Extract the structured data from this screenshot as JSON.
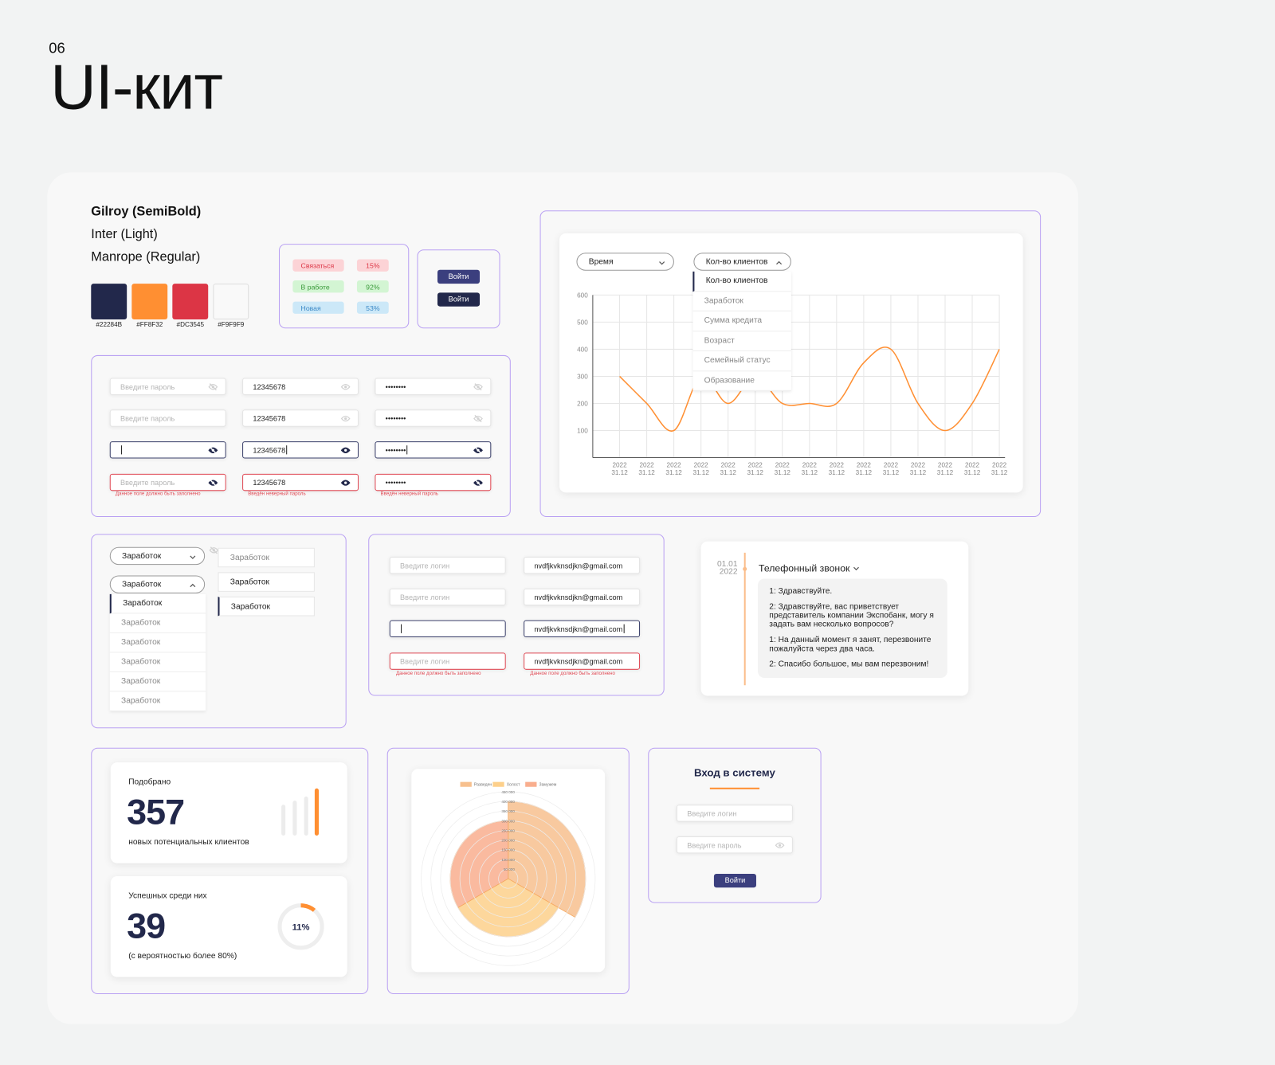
{
  "header": {
    "number": "06",
    "title": "UI-кит"
  },
  "fonts": [
    "Gilroy (SemiBold)",
    "Inter (Light)",
    "Manrope (Regular)"
  ],
  "colors": [
    "#22284B",
    "#FF8F32",
    "#DC3545",
    "#F9F9F9"
  ],
  "badges": [
    {
      "label": "Связаться",
      "percent": "15%"
    },
    {
      "label": "В работе",
      "percent": "92%"
    },
    {
      "label": "Новая",
      "percent": "53%"
    }
  ],
  "buttons": [
    "Войти",
    "Войти"
  ],
  "password_inputs": {
    "placeholder": "Введите пароль",
    "value": "12345678",
    "masked": "••••••••",
    "errors": [
      "Данное поле должно быть заполнено",
      "Введён неверный пароль",
      "Введён неверный пароль"
    ]
  },
  "line_chart": {
    "type": "line",
    "selects": [
      "Время",
      "Кол-во клиентов"
    ],
    "menu": [
      "Кол-во клиентов",
      "Заработок",
      "Сумма кредита",
      "Возраст",
      "Семейный статус",
      "Образование"
    ],
    "x_labels": [
      {
        "year": "2022",
        "date": "31.12"
      },
      {
        "year": "2022",
        "date": "31.12"
      },
      {
        "year": "2022",
        "date": "31.12"
      },
      {
        "year": "2022",
        "date": "31.12"
      },
      {
        "year": "2022",
        "date": "31.12"
      },
      {
        "year": "2022",
        "date": "31.12"
      },
      {
        "year": "2022",
        "date": "31.12"
      },
      {
        "year": "2022",
        "date": "31.12"
      },
      {
        "year": "2022",
        "date": "31.12"
      },
      {
        "year": "2022",
        "date": "31.12"
      },
      {
        "year": "2022",
        "date": "31.12"
      },
      {
        "year": "2022",
        "date": "31.12"
      },
      {
        "year": "2022",
        "date": "31.12"
      },
      {
        "year": "2022",
        "date": "31.12"
      },
      {
        "year": "2022",
        "date": "31.12"
      }
    ],
    "values": [
      300,
      200,
      100,
      300,
      200,
      300,
      200,
      200,
      200,
      350,
      400,
      200,
      100,
      200,
      400
    ],
    "color": "#FF8F32",
    "ylim": [
      0,
      600
    ],
    "yticks": [
      100,
      200,
      300,
      400,
      500,
      600
    ],
    "grid": true
  },
  "dropdowns": {
    "label": "Заработок",
    "menu": [
      "Заработок",
      "Заработок",
      "Заработок",
      "Заработок",
      "Заработок",
      "Заработок"
    ],
    "options": [
      "Заработок",
      "Заработок",
      "Заработок"
    ]
  },
  "login_inputs": {
    "placeholder": "Введите логин",
    "value": "nvdfjkvknsdjkn@gmail.com",
    "error": "Данное поле должно быть заполнено"
  },
  "chat": {
    "date": "01.01",
    "year": "2022",
    "title": "Телефонный звонок",
    "messages": [
      "1: Здравствуйте.",
      "2: Здравствуйте, вас приветствует представитель компании Экспобанк, могу я задать вам несколько вопросов?",
      "1: На данный момент я занят, перезвоните пожалуйста через два часа.",
      "2: Спасибо большое, мы вам перезвоним!"
    ]
  },
  "stats": [
    {
      "label": "Подобрано",
      "value": "357",
      "caption": "новых потенциальных клиентов"
    },
    {
      "label": "Успешных среди них",
      "value": "39",
      "caption": "(с вероятностью более 80%)",
      "donut": {
        "type": "donut",
        "values": [
          11
        ],
        "value_labels": [
          "11%"
        ],
        "color": "#FF8F32"
      }
    }
  ],
  "polar_chart": {
    "type": "polarArea",
    "categories": [
      "Разведен",
      "Холост",
      "Замужем"
    ],
    "values": [
      400000,
      300000,
      300000
    ],
    "colors": [
      "#F7C08E",
      "#FDD08B",
      "#F9AE8E"
    ],
    "ylim": [
      0,
      450000
    ],
    "yticks": [
      {
        "value": 50000,
        "label": "50 000"
      },
      {
        "value": 100000,
        "label": "100 000"
      },
      {
        "value": 150000,
        "label": "150 000"
      },
      {
        "value": 200000,
        "label": "200 000"
      },
      {
        "value": 250000,
        "label": "250 000"
      },
      {
        "value": 300000,
        "label": "300 000"
      },
      {
        "value": 350000,
        "label": "350 000"
      },
      {
        "value": 400000,
        "label": "400 000"
      },
      {
        "value": 450000,
        "label": "450 000"
      }
    ]
  },
  "login_form": {
    "title": "Вход в систему",
    "login_placeholder": "Введите логин",
    "password_placeholder": "Введите пароль",
    "button": "Войти"
  }
}
